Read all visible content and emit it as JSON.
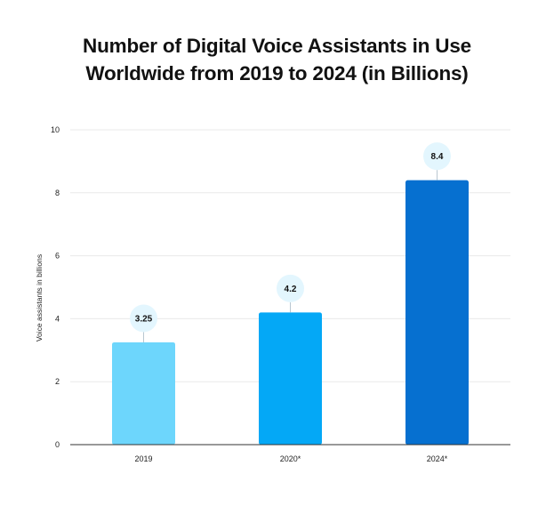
{
  "chart_data": {
    "type": "bar",
    "title_lines": [
      "Number of Digital Voice Assistants in Use",
      "Worldwide from 2019 to 2024 (in Billions)"
    ],
    "title": "Number of Digital Voice Assistants in Use Worldwide from 2019 to 2024 (in Billions)",
    "xlabel": "",
    "ylabel": "Voice assistants in billions",
    "ylim": [
      0,
      10
    ],
    "yticks": [
      0,
      2,
      4,
      6,
      8,
      10
    ],
    "grid": true,
    "categories": [
      "2019",
      "2020*",
      "2024*"
    ],
    "values": [
      3.25,
      4.2,
      8.4
    ],
    "data_labels": [
      "3.25",
      "4.2",
      "8.4"
    ],
    "bar_colors": [
      "#6dd6fc",
      "#04a8f6",
      "#0670d0"
    ],
    "colors": {
      "grid": "#e9e9e9",
      "axis": "#333333",
      "label_bubble": "#e3f6fe",
      "connector": "#b9c7d1"
    }
  }
}
